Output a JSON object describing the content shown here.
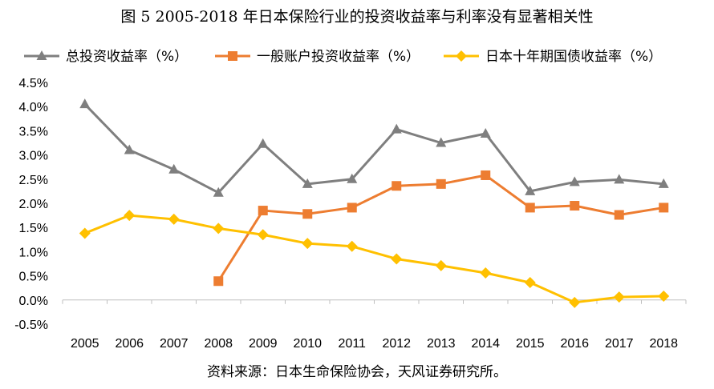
{
  "chart_data": {
    "type": "line",
    "title": "图 5 2005-2018 年日本保险行业的投资收益率与利率没有显著相关性",
    "source": "资料来源：日本生命保险协会，天风证券研究所。",
    "categories": [
      "2005",
      "2006",
      "2007",
      "2008",
      "2009",
      "2010",
      "2011",
      "2012",
      "2013",
      "2014",
      "2015",
      "2016",
      "2017",
      "2018"
    ],
    "ylim": [
      -0.5,
      4.5
    ],
    "ytick_values": [
      -0.5,
      0.0,
      0.5,
      1.0,
      1.5,
      2.0,
      2.5,
      3.0,
      3.5,
      4.0,
      4.5
    ],
    "ytick_labels": [
      "-0.5%",
      "0.0%",
      "0.5%",
      "1.0%",
      "1.5%",
      "2.0%",
      "2.5%",
      "3.0%",
      "3.5%",
      "4.0%",
      "4.5%"
    ],
    "legend_position": "top",
    "series": [
      {
        "name": "总投资收益率（%）",
        "color": "#7f7f7f",
        "marker": "triangle",
        "values": [
          4.05,
          3.1,
          2.7,
          2.22,
          3.23,
          2.4,
          2.5,
          3.53,
          3.25,
          3.44,
          2.25,
          2.44,
          2.49,
          2.4
        ]
      },
      {
        "name": "一般账户投资收益率（%）",
        "color": "#ed7d31",
        "marker": "square",
        "values": [
          null,
          null,
          null,
          0.39,
          1.85,
          1.78,
          1.91,
          2.36,
          2.4,
          2.58,
          1.91,
          1.95,
          1.76,
          1.91
        ]
      },
      {
        "name": "日本十年期国债收益率（%）",
        "color": "#ffc000",
        "marker": "diamond",
        "values": [
          1.38,
          1.75,
          1.67,
          1.48,
          1.35,
          1.17,
          1.11,
          0.85,
          0.71,
          0.56,
          0.36,
          -0.05,
          0.06,
          0.08
        ]
      }
    ]
  }
}
